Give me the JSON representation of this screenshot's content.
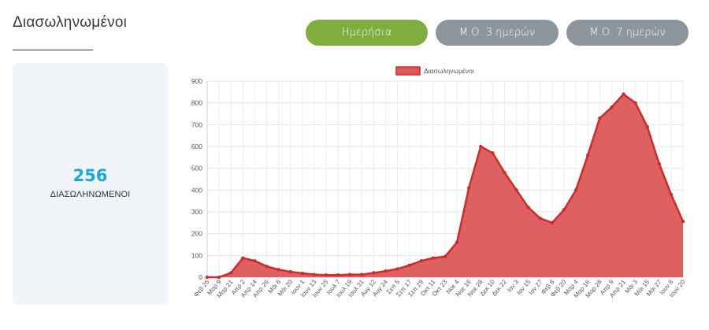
{
  "page": {
    "title": "Διασωληνωμένοι"
  },
  "buttons": {
    "daily": "Ημερήσια",
    "ma3": "Μ.Ο. 3 ημερών",
    "ma7": "Μ.Ο. 7 ημερών"
  },
  "stat": {
    "value": "256",
    "label": "ΔΙΑΣΩΛΗΝΩΜΕΝΟΙ"
  },
  "colors": {
    "active": "#7fae3e",
    "inactive": "#8e959d",
    "accent": "#1aa8df",
    "series_fill": "#dc5858",
    "series_line": "#cf2b2b"
  },
  "chart_data": {
    "type": "area",
    "legend": "Διασωληνωμένοι",
    "legend_position": "top",
    "grid": true,
    "ylim": [
      0,
      900
    ],
    "yticks": [
      0,
      100,
      200,
      300,
      400,
      500,
      600,
      700,
      800,
      900
    ],
    "xticks": [
      "Φεβ 26",
      "Μαρ 9",
      "Μαρ 21",
      "Απρ 2",
      "Απρ 14",
      "Απρ 26",
      "Μάι 8",
      "Μάι 20",
      "Ιουν 1",
      "Ιουν 13",
      "Ιουν 25",
      "Ιουλ 7",
      "Ιουλ 19",
      "Ιουλ 31",
      "Αυγ 12",
      "Αυγ 24",
      "Σεπ 5",
      "Σεπ 17",
      "Σεπ 29",
      "Οκτ 11",
      "Οκτ 23",
      "Νοε 4",
      "Νοε 16",
      "Νοε 28",
      "Δεκ 10",
      "Δεκ 22",
      "Ιαν 3",
      "Ιαν 15",
      "Ιαν 27",
      "Φεβ 8",
      "Φεβ 20",
      "Μαρ 4",
      "Μαρ 16",
      "Μαρ 28",
      "Απρ 9",
      "Απρ 21",
      "Μάι 3",
      "Μάι 15",
      "Μάι 27",
      "Ιουν 8",
      "Ιουν 20"
    ],
    "series": [
      {
        "name": "Διασωληνωμένοι",
        "points": [
          [
            "Φεβ 26",
            0
          ],
          [
            "Μαρ 9",
            0
          ],
          [
            "Μαρ 21",
            20
          ],
          [
            "Απρ 2",
            88
          ],
          [
            "Απρ 14",
            75
          ],
          [
            "Απρ 26",
            50
          ],
          [
            "Μάι 8",
            35
          ],
          [
            "Μάι 20",
            25
          ],
          [
            "Ιουν 1",
            18
          ],
          [
            "Ιουν 13",
            12
          ],
          [
            "Ιουν 25",
            10
          ],
          [
            "Ιουλ 7",
            10
          ],
          [
            "Ιουλ 19",
            12
          ],
          [
            "Ιουλ 31",
            12
          ],
          [
            "Αυγ 12",
            20
          ],
          [
            "Αυγ 24",
            28
          ],
          [
            "Σεπ 5",
            38
          ],
          [
            "Σεπ 17",
            55
          ],
          [
            "Σεπ 29",
            75
          ],
          [
            "Οκτ 11",
            88
          ],
          [
            "Οκτ 23",
            95
          ],
          [
            "Νοε 4",
            160
          ],
          [
            "Νοε 16",
            410
          ],
          [
            "Νοε 28",
            600
          ],
          [
            "Δεκ 10",
            570
          ],
          [
            "Δεκ 22",
            480
          ],
          [
            "Ιαν 3",
            400
          ],
          [
            "Ιαν 15",
            320
          ],
          [
            "Ιαν 27",
            270
          ],
          [
            "Φεβ 8",
            250
          ],
          [
            "Φεβ 20",
            310
          ],
          [
            "Μαρ 4",
            400
          ],
          [
            "Μαρ 16",
            560
          ],
          [
            "Μαρ 28",
            730
          ],
          [
            "Απρ 9",
            780
          ],
          [
            "Απρ 21",
            840
          ],
          [
            "Μάι 3",
            800
          ],
          [
            "Μάι 15",
            690
          ],
          [
            "Μάι 27",
            520
          ],
          [
            "Ιουν 8",
            380
          ],
          [
            "Ιουν 20",
            256
          ]
        ]
      }
    ]
  }
}
